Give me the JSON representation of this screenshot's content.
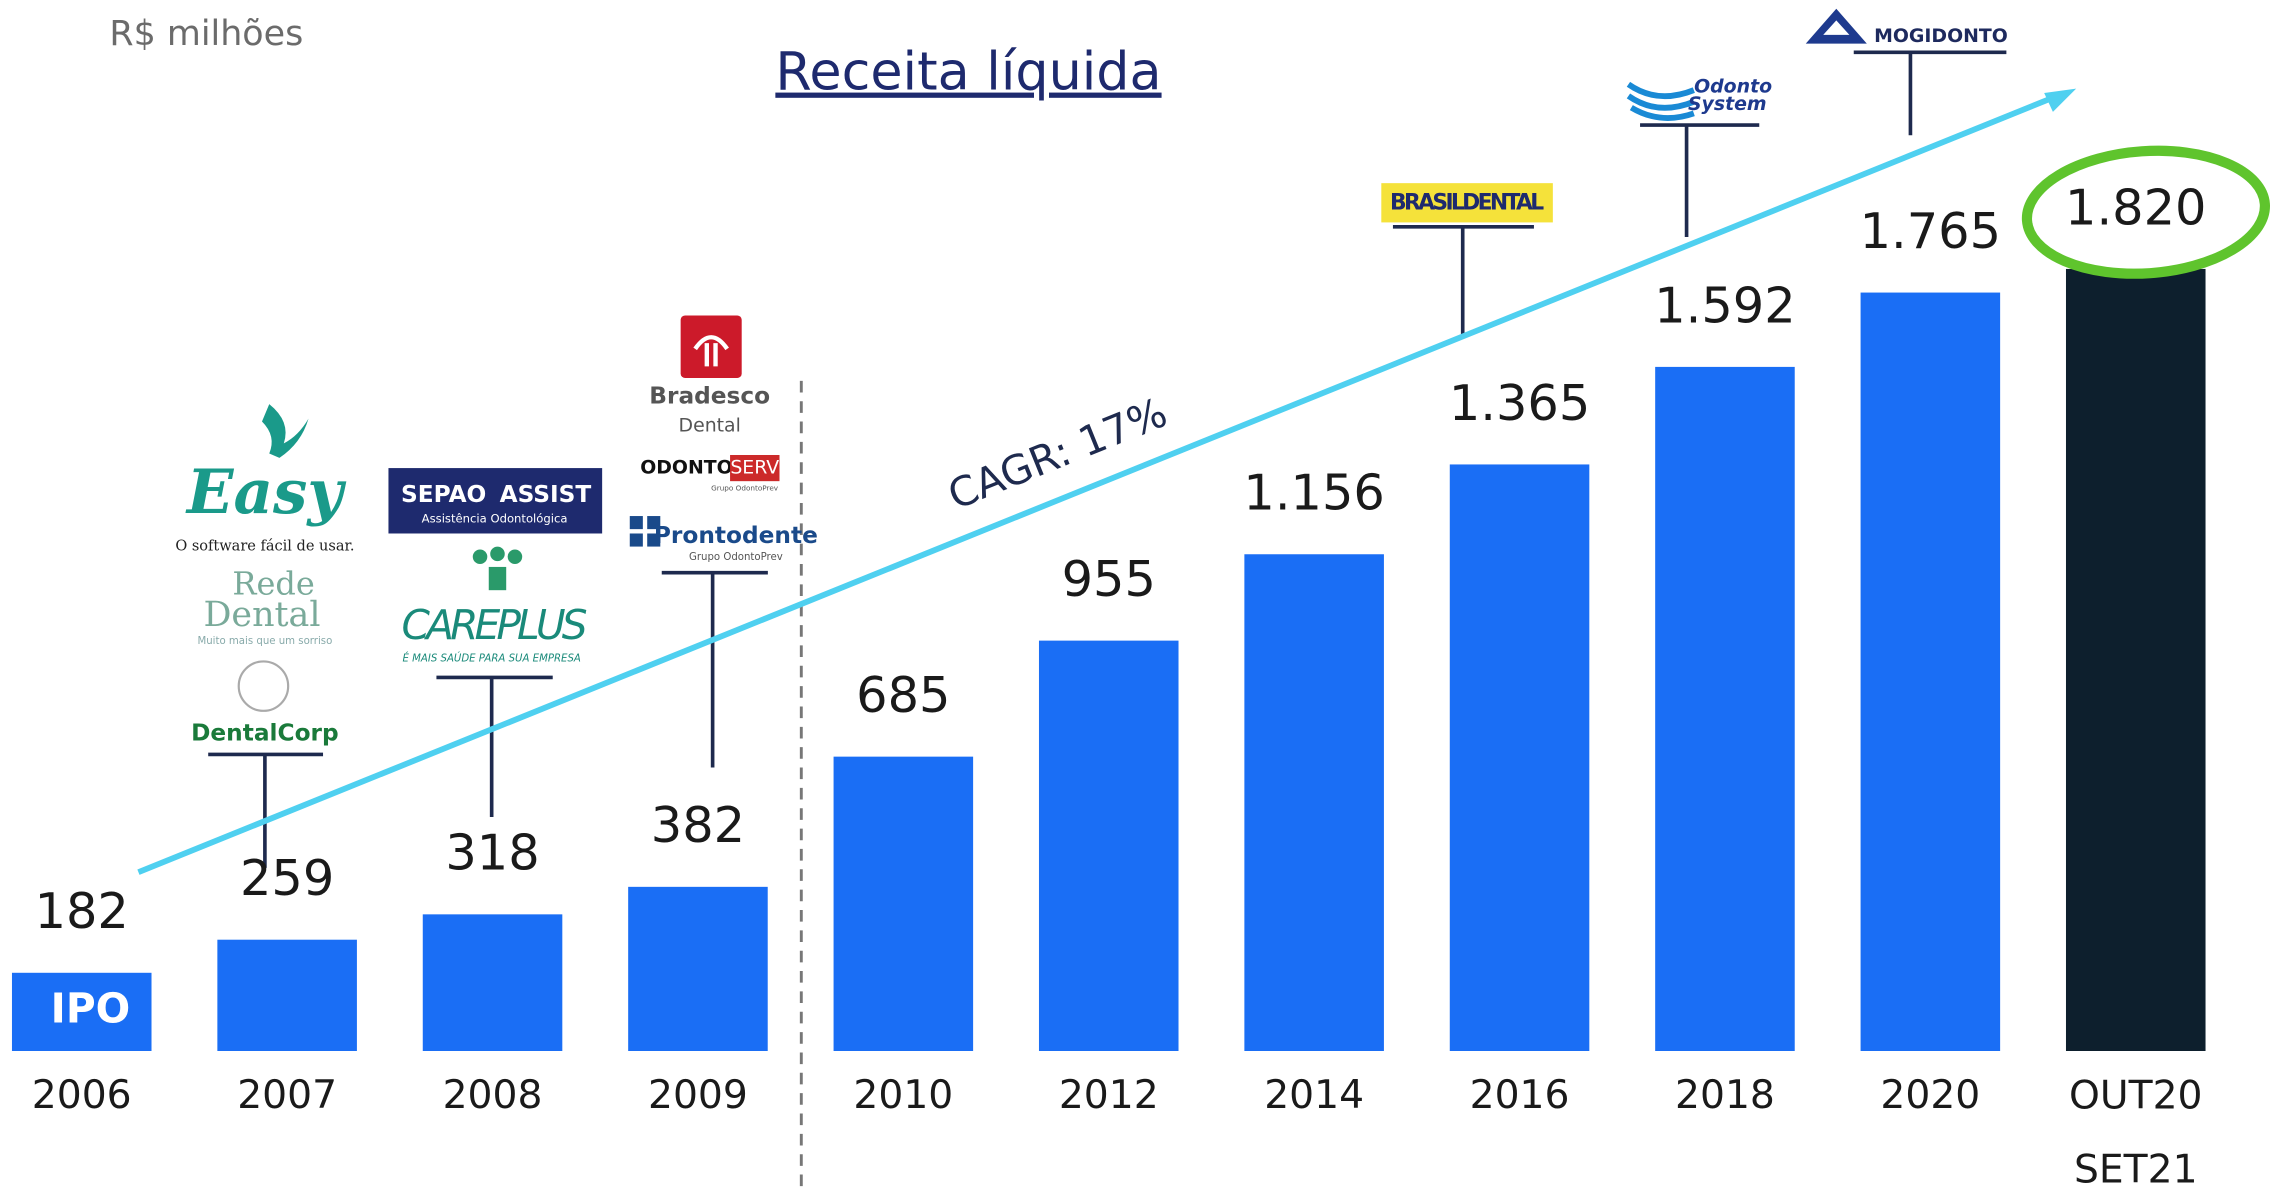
{
  "chart_data": {
    "type": "bar",
    "title": "Receita líquida",
    "unit_label": "R$ milhões",
    "categories": [
      "2006",
      "2007",
      "2008",
      "2009",
      "2010",
      "2012",
      "2014",
      "2016",
      "2018",
      "2020",
      "OUT20 SET21"
    ],
    "values": [
      182,
      259,
      318,
      382,
      685,
      955,
      1156,
      1365,
      1592,
      1765,
      1820
    ],
    "value_labels": [
      "182",
      "259",
      "318",
      "382",
      "685",
      "955",
      "1.156",
      "1.365",
      "1.592",
      "1.765",
      "1.820"
    ],
    "colors": [
      "#1a6ef5",
      "#1a6ef5",
      "#1a6ef5",
      "#1a6ef5",
      "#1a6ef5",
      "#1a6ef5",
      "#1a6ef5",
      "#1a6ef5",
      "#1a6ef5",
      "#1a6ef5",
      "#0d1f2d"
    ],
    "annotations": [
      "IPO",
      "CAGR: 17%"
    ]
  },
  "logos": [
    "Easy",
    "O software fácil de usar.",
    "Rede",
    "Dental",
    "Muito mais que um sorriso",
    "DentalCorp",
    "SEPAO",
    "ASSIST",
    "Assistência Odontológica",
    "CAREPLUS",
    "É MAIS SAÚDE PARA SUA EMPRESA",
    "Bradesco",
    "Dental",
    "ODONTO",
    "SERV",
    "Grupo OdontoPrev",
    "Prontodente",
    "Grupo OdontoPrev",
    "BRASILDENTAL",
    "Odonto",
    "System",
    "MOGIDONTO"
  ]
}
